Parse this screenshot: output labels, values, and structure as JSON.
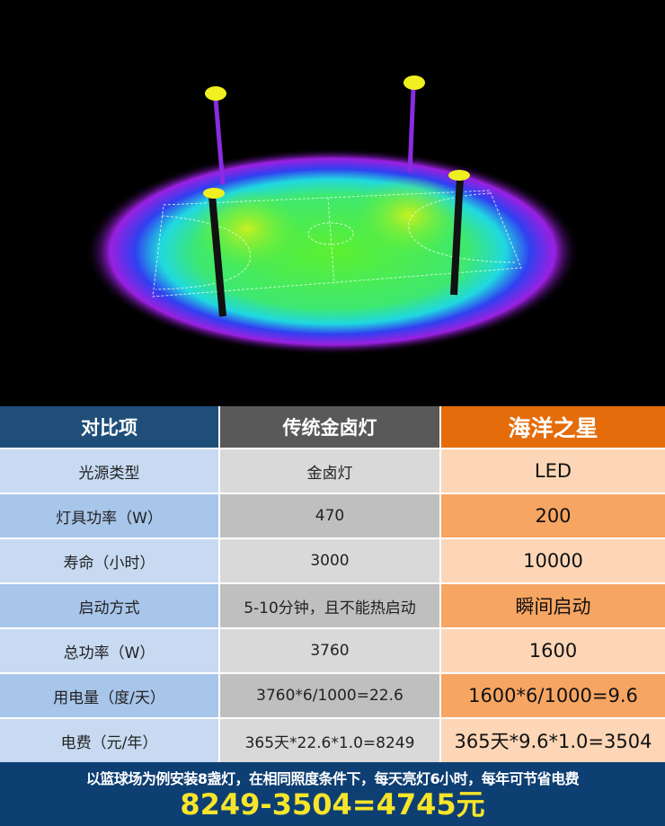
{
  "table": {
    "headers": [
      "对比项",
      "传统金卤灯",
      "海洋之星"
    ],
    "rows": [
      [
        "光源类型",
        "金卤灯",
        "LED"
      ],
      [
        "灯具功率（W）",
        "470",
        "200"
      ],
      [
        "寿命（小时）",
        "3000",
        "10000"
      ],
      [
        "启动方式",
        "5-10分钟，且不能热启动",
        "瞬间启动"
      ],
      [
        "总功率（W）",
        "3760",
        "1600"
      ],
      [
        "用电量（度/天）",
        "3760*6/1000=22.6",
        "1600*6/1000=9.6"
      ],
      [
        "电费（元/年）",
        "365天*22.6*1.0=8249",
        "365天*9.6*1.0=3504"
      ]
    ],
    "colors": {
      "header_item": "#1f4e79",
      "header_traditional": "#595959",
      "header_led": "#e46c0a"
    }
  },
  "footer": {
    "text": "以篮球场为例安装8盏灯，在相同照度条件下，每天亮灯6小时，每年可节省电费",
    "savings": "8249-3504=4745元"
  }
}
